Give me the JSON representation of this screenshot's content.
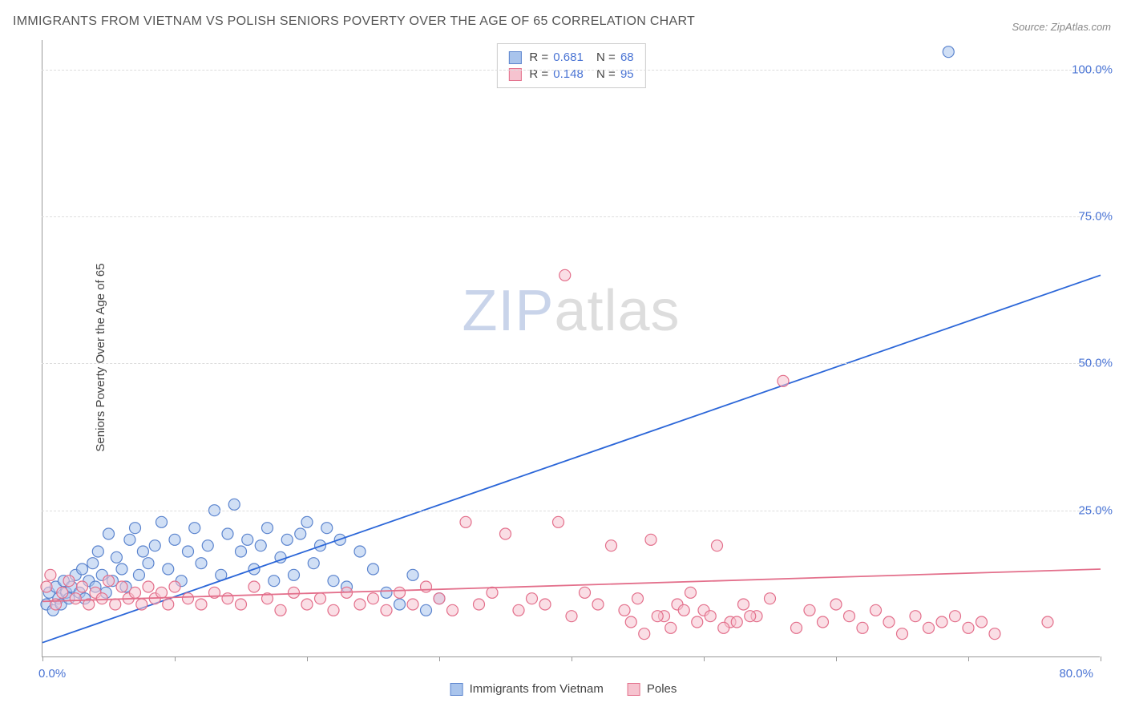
{
  "title": "IMMIGRANTS FROM VIETNAM VS POLISH SENIORS POVERTY OVER THE AGE OF 65 CORRELATION CHART",
  "source": "Source: ZipAtlas.com",
  "watermark": {
    "zip": "ZIP",
    "atlas": "atlas"
  },
  "chart": {
    "type": "scatter",
    "ylabel": "Seniors Poverty Over the Age of 65",
    "x_domain": [
      0,
      80
    ],
    "y_domain": [
      0,
      105
    ],
    "x_ticks": [
      0,
      10,
      20,
      30,
      40,
      50,
      60,
      70,
      80
    ],
    "x_tick_labels": {
      "0": "0.0%",
      "80": "80.0%"
    },
    "y_ticks": [
      25,
      50,
      75,
      100
    ],
    "y_tick_labels": {
      "25": "25.0%",
      "50": "50.0%",
      "75": "75.0%",
      "100": "100.0%"
    },
    "background_color": "#ffffff",
    "grid_color": "#dddddd",
    "axis_color": "#999999",
    "tick_label_color": "#4a74d4",
    "marker_radius": 7,
    "marker_opacity": 0.55,
    "marker_stroke_width": 1.2,
    "line_width": 1.8,
    "top_legend": [
      {
        "swatch_fill": "#a9c4ec",
        "swatch_border": "#5b84ce",
        "r_label": "R =",
        "r_val": "0.681",
        "n_label": "N =",
        "n_val": "68"
      },
      {
        "swatch_fill": "#f6c3cf",
        "swatch_border": "#e36f8b",
        "r_label": "R =",
        "r_val": "0.148",
        "n_label": "N =",
        "n_val": "95"
      }
    ],
    "bottom_legend": [
      {
        "swatch_fill": "#a9c4ec",
        "swatch_border": "#5b84ce",
        "label": "Immigrants from Vietnam"
      },
      {
        "swatch_fill": "#f6c3cf",
        "swatch_border": "#e36f8b",
        "label": "Poles"
      }
    ],
    "series": [
      {
        "name": "Immigrants from Vietnam",
        "fill": "#a9c4ec",
        "stroke": "#5b84ce",
        "trend_color": "#2b66d8",
        "trend": {
          "x1": 0,
          "y1": 2.5,
          "x2": 80,
          "y2": 65
        },
        "points": [
          [
            0.3,
            9
          ],
          [
            0.5,
            11
          ],
          [
            0.8,
            8
          ],
          [
            1.0,
            12
          ],
          [
            1.2,
            10
          ],
          [
            1.4,
            9
          ],
          [
            1.6,
            13
          ],
          [
            1.8,
            11
          ],
          [
            2.0,
            10
          ],
          [
            2.2,
            12
          ],
          [
            2.5,
            14
          ],
          [
            2.8,
            11
          ],
          [
            3.0,
            15
          ],
          [
            3.2,
            10
          ],
          [
            3.5,
            13
          ],
          [
            3.8,
            16
          ],
          [
            4.0,
            12
          ],
          [
            4.2,
            18
          ],
          [
            4.5,
            14
          ],
          [
            4.8,
            11
          ],
          [
            5.0,
            21
          ],
          [
            5.3,
            13
          ],
          [
            5.6,
            17
          ],
          [
            6.0,
            15
          ],
          [
            6.3,
            12
          ],
          [
            6.6,
            20
          ],
          [
            7.0,
            22
          ],
          [
            7.3,
            14
          ],
          [
            7.6,
            18
          ],
          [
            8.0,
            16
          ],
          [
            8.5,
            19
          ],
          [
            9.0,
            23
          ],
          [
            9.5,
            15
          ],
          [
            10.0,
            20
          ],
          [
            10.5,
            13
          ],
          [
            11.0,
            18
          ],
          [
            11.5,
            22
          ],
          [
            12.0,
            16
          ],
          [
            12.5,
            19
          ],
          [
            13.0,
            25
          ],
          [
            13.5,
            14
          ],
          [
            14.0,
            21
          ],
          [
            14.5,
            26
          ],
          [
            15.0,
            18
          ],
          [
            15.5,
            20
          ],
          [
            16.0,
            15
          ],
          [
            16.5,
            19
          ],
          [
            17.0,
            22
          ],
          [
            17.5,
            13
          ],
          [
            18.0,
            17
          ],
          [
            18.5,
            20
          ],
          [
            19.0,
            14
          ],
          [
            19.5,
            21
          ],
          [
            20.0,
            23
          ],
          [
            20.5,
            16
          ],
          [
            21.0,
            19
          ],
          [
            21.5,
            22
          ],
          [
            22.0,
            13
          ],
          [
            22.5,
            20
          ],
          [
            23.0,
            12
          ],
          [
            24.0,
            18
          ],
          [
            25.0,
            15
          ],
          [
            26.0,
            11
          ],
          [
            27.0,
            9
          ],
          [
            28.0,
            14
          ],
          [
            29.0,
            8
          ],
          [
            30.0,
            10
          ],
          [
            68.5,
            103
          ]
        ]
      },
      {
        "name": "Poles",
        "fill": "#f6c3cf",
        "stroke": "#e36f8b",
        "trend_color": "#e36f8b",
        "trend": {
          "x1": 0,
          "y1": 9.5,
          "x2": 80,
          "y2": 15
        },
        "points": [
          [
            0.3,
            12
          ],
          [
            0.6,
            14
          ],
          [
            1.0,
            9
          ],
          [
            1.5,
            11
          ],
          [
            2.0,
            13
          ],
          [
            2.5,
            10
          ],
          [
            3.0,
            12
          ],
          [
            3.5,
            9
          ],
          [
            4.0,
            11
          ],
          [
            4.5,
            10
          ],
          [
            5.0,
            13
          ],
          [
            5.5,
            9
          ],
          [
            6.0,
            12
          ],
          [
            6.5,
            10
          ],
          [
            7.0,
            11
          ],
          [
            7.5,
            9
          ],
          [
            8.0,
            12
          ],
          [
            8.5,
            10
          ],
          [
            9.0,
            11
          ],
          [
            9.5,
            9
          ],
          [
            10.0,
            12
          ],
          [
            11.0,
            10
          ],
          [
            12.0,
            9
          ],
          [
            13.0,
            11
          ],
          [
            14.0,
            10
          ],
          [
            15.0,
            9
          ],
          [
            16.0,
            12
          ],
          [
            17.0,
            10
          ],
          [
            18.0,
            8
          ],
          [
            19.0,
            11
          ],
          [
            20.0,
            9
          ],
          [
            21.0,
            10
          ],
          [
            22.0,
            8
          ],
          [
            23.0,
            11
          ],
          [
            24.0,
            9
          ],
          [
            25.0,
            10
          ],
          [
            26.0,
            8
          ],
          [
            27.0,
            11
          ],
          [
            28.0,
            9
          ],
          [
            29.0,
            12
          ],
          [
            30.0,
            10
          ],
          [
            31.0,
            8
          ],
          [
            32.0,
            23
          ],
          [
            33.0,
            9
          ],
          [
            34.0,
            11
          ],
          [
            35.0,
            21
          ],
          [
            36.0,
            8
          ],
          [
            37.0,
            10
          ],
          [
            38.0,
            9
          ],
          [
            39.0,
            23
          ],
          [
            40.0,
            7
          ],
          [
            41.0,
            11
          ],
          [
            42.0,
            9
          ],
          [
            43.0,
            19
          ],
          [
            44.0,
            8
          ],
          [
            45.0,
            10
          ],
          [
            46.0,
            20
          ],
          [
            47.0,
            7
          ],
          [
            48.0,
            9
          ],
          [
            49.0,
            11
          ],
          [
            50.0,
            8
          ],
          [
            51.0,
            19
          ],
          [
            52.0,
            6
          ],
          [
            53.0,
            9
          ],
          [
            54.0,
            7
          ],
          [
            55.0,
            10
          ],
          [
            56.0,
            47
          ],
          [
            57.0,
            5
          ],
          [
            58.0,
            8
          ],
          [
            59.0,
            6
          ],
          [
            60.0,
            9
          ],
          [
            61.0,
            7
          ],
          [
            62.0,
            5
          ],
          [
            63.0,
            8
          ],
          [
            64.0,
            6
          ],
          [
            65.0,
            4
          ],
          [
            66.0,
            7
          ],
          [
            67.0,
            5
          ],
          [
            39.5,
            65
          ],
          [
            76.0,
            6
          ],
          [
            68.0,
            6
          ],
          [
            69.0,
            7
          ],
          [
            70.0,
            5
          ],
          [
            71.0,
            6
          ],
          [
            72.0,
            4
          ],
          [
            44.5,
            6
          ],
          [
            45.5,
            4
          ],
          [
            46.5,
            7
          ],
          [
            47.5,
            5
          ],
          [
            48.5,
            8
          ],
          [
            49.5,
            6
          ],
          [
            50.5,
            7
          ],
          [
            51.5,
            5
          ],
          [
            52.5,
            6
          ],
          [
            53.5,
            7
          ]
        ]
      }
    ]
  }
}
